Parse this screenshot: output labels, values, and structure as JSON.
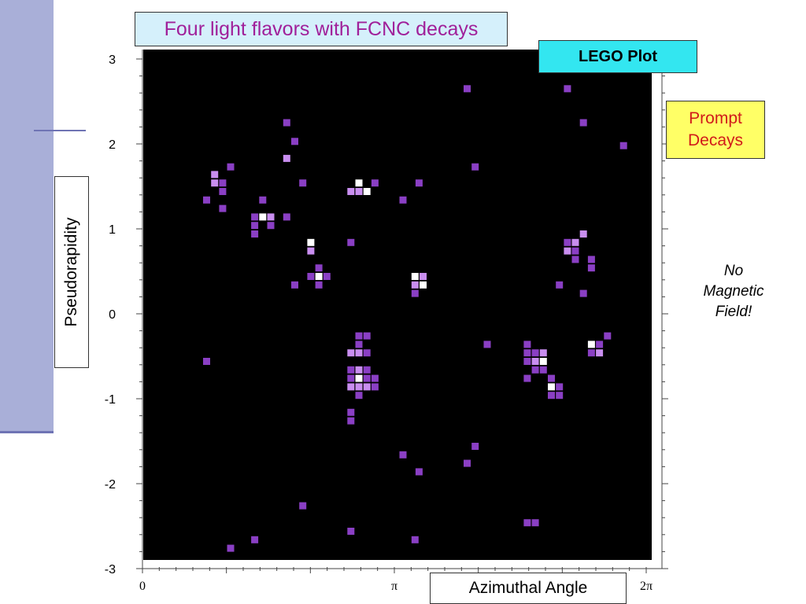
{
  "title": "Four light flavors with FCNC decays",
  "lego_label": "LEGO Plot",
  "prompt_label": [
    "Prompt",
    "Decays"
  ],
  "note": [
    "No",
    "Magnetic",
    "Field!"
  ],
  "colors": {
    "plot_bg": "#000000",
    "cell": "#8a3fc4",
    "cell_light": "#c98ef0",
    "cell_white": "#ffffff",
    "title_text": "#a0209a",
    "title_bg": "#d5f0fb",
    "lego_bg": "#33e6f0",
    "prompt_bg": "#ffff66",
    "prompt_text": "#d11a1a",
    "side_band": "#a9afd8"
  },
  "chart_data": {
    "type": "heatmap",
    "title": "Four light flavors with FCNC decays",
    "xlabel": "Azimuthal Angle",
    "ylabel": "Pseudorapidity",
    "xlim": [
      0,
      6.2832
    ],
    "ylim": [
      -3,
      3
    ],
    "x_ticks": [
      "0",
      "π",
      "2π"
    ],
    "y_ticks": [
      "3",
      "2",
      "1",
      "0",
      "-1",
      "-2",
      "-3"
    ],
    "grid": false,
    "cells": [
      {
        "x": 4.05,
        "y": 2.65,
        "level": 1
      },
      {
        "x": 5.3,
        "y": 2.65,
        "level": 1
      },
      {
        "x": 1.8,
        "y": 2.25,
        "level": 1
      },
      {
        "x": 5.5,
        "y": 2.25,
        "level": 1
      },
      {
        "x": 1.9,
        "y": 2.03,
        "level": 1
      },
      {
        "x": 6.0,
        "y": 1.98,
        "level": 1
      },
      {
        "x": 1.8,
        "y": 1.83,
        "level": 2
      },
      {
        "x": 1.1,
        "y": 1.73,
        "level": 1
      },
      {
        "x": 4.15,
        "y": 1.73,
        "level": 1
      },
      {
        "x": 0.9,
        "y": 1.64,
        "level": 2
      },
      {
        "x": 0.9,
        "y": 1.54,
        "level": 2
      },
      {
        "x": 1.0,
        "y": 1.54,
        "level": 1
      },
      {
        "x": 1.0,
        "y": 1.44,
        "level": 1
      },
      {
        "x": 0.8,
        "y": 1.34,
        "level": 1
      },
      {
        "x": 1.0,
        "y": 1.24,
        "level": 1
      },
      {
        "x": 2.0,
        "y": 1.54,
        "level": 1
      },
      {
        "x": 2.7,
        "y": 1.54,
        "level": 3
      },
      {
        "x": 2.9,
        "y": 1.54,
        "level": 1
      },
      {
        "x": 3.45,
        "y": 1.54,
        "level": 1
      },
      {
        "x": 2.6,
        "y": 1.44,
        "level": 2
      },
      {
        "x": 2.7,
        "y": 1.44,
        "level": 2
      },
      {
        "x": 2.8,
        "y": 1.44,
        "level": 3
      },
      {
        "x": 1.5,
        "y": 1.34,
        "level": 1
      },
      {
        "x": 3.25,
        "y": 1.34,
        "level": 1
      },
      {
        "x": 1.4,
        "y": 1.14,
        "level": 1
      },
      {
        "x": 1.5,
        "y": 1.14,
        "level": 3
      },
      {
        "x": 1.6,
        "y": 1.14,
        "level": 2
      },
      {
        "x": 1.8,
        "y": 1.14,
        "level": 1
      },
      {
        "x": 1.4,
        "y": 1.04,
        "level": 1
      },
      {
        "x": 1.6,
        "y": 1.04,
        "level": 1
      },
      {
        "x": 1.4,
        "y": 0.94,
        "level": 1
      },
      {
        "x": 5.5,
        "y": 0.94,
        "level": 2
      },
      {
        "x": 2.1,
        "y": 0.84,
        "level": 3
      },
      {
        "x": 2.6,
        "y": 0.84,
        "level": 1
      },
      {
        "x": 5.3,
        "y": 0.84,
        "level": 1
      },
      {
        "x": 5.4,
        "y": 0.84,
        "level": 2
      },
      {
        "x": 2.1,
        "y": 0.74,
        "level": 2
      },
      {
        "x": 5.3,
        "y": 0.74,
        "level": 2
      },
      {
        "x": 5.4,
        "y": 0.74,
        "level": 1
      },
      {
        "x": 5.4,
        "y": 0.64,
        "level": 1
      },
      {
        "x": 5.6,
        "y": 0.64,
        "level": 1
      },
      {
        "x": 2.2,
        "y": 0.54,
        "level": 1
      },
      {
        "x": 5.6,
        "y": 0.54,
        "level": 1
      },
      {
        "x": 2.1,
        "y": 0.44,
        "level": 1
      },
      {
        "x": 2.2,
        "y": 0.44,
        "level": 3
      },
      {
        "x": 2.3,
        "y": 0.44,
        "level": 1
      },
      {
        "x": 3.4,
        "y": 0.44,
        "level": 3
      },
      {
        "x": 3.5,
        "y": 0.44,
        "level": 2
      },
      {
        "x": 1.9,
        "y": 0.34,
        "level": 1
      },
      {
        "x": 2.2,
        "y": 0.34,
        "level": 1
      },
      {
        "x": 3.4,
        "y": 0.34,
        "level": 2
      },
      {
        "x": 3.5,
        "y": 0.34,
        "level": 3
      },
      {
        "x": 5.2,
        "y": 0.34,
        "level": 1
      },
      {
        "x": 3.4,
        "y": 0.24,
        "level": 1
      },
      {
        "x": 5.5,
        "y": 0.24,
        "level": 1
      },
      {
        "x": 2.7,
        "y": -0.26,
        "level": 1
      },
      {
        "x": 2.8,
        "y": -0.26,
        "level": 1
      },
      {
        "x": 5.8,
        "y": -0.26,
        "level": 1
      },
      {
        "x": 2.7,
        "y": -0.36,
        "level": 1
      },
      {
        "x": 4.3,
        "y": -0.36,
        "level": 1
      },
      {
        "x": 4.8,
        "y": -0.36,
        "level": 1
      },
      {
        "x": 5.6,
        "y": -0.36,
        "level": 3
      },
      {
        "x": 5.7,
        "y": -0.36,
        "level": 1
      },
      {
        "x": 2.6,
        "y": -0.46,
        "level": 2
      },
      {
        "x": 2.7,
        "y": -0.46,
        "level": 2
      },
      {
        "x": 2.8,
        "y": -0.46,
        "level": 1
      },
      {
        "x": 4.8,
        "y": -0.46,
        "level": 1
      },
      {
        "x": 4.9,
        "y": -0.46,
        "level": 1
      },
      {
        "x": 5.0,
        "y": -0.46,
        "level": 2
      },
      {
        "x": 5.6,
        "y": -0.46,
        "level": 1
      },
      {
        "x": 5.7,
        "y": -0.46,
        "level": 2
      },
      {
        "x": 0.8,
        "y": -0.56,
        "level": 1
      },
      {
        "x": 4.8,
        "y": -0.56,
        "level": 1
      },
      {
        "x": 4.9,
        "y": -0.56,
        "level": 2
      },
      {
        "x": 5.0,
        "y": -0.56,
        "level": 3
      },
      {
        "x": 2.6,
        "y": -0.66,
        "level": 1
      },
      {
        "x": 2.7,
        "y": -0.66,
        "level": 2
      },
      {
        "x": 2.8,
        "y": -0.66,
        "level": 1
      },
      {
        "x": 4.9,
        "y": -0.66,
        "level": 1
      },
      {
        "x": 5.0,
        "y": -0.66,
        "level": 1
      },
      {
        "x": 2.6,
        "y": -0.76,
        "level": 1
      },
      {
        "x": 2.7,
        "y": -0.76,
        "level": 3
      },
      {
        "x": 2.8,
        "y": -0.76,
        "level": 1
      },
      {
        "x": 2.9,
        "y": -0.76,
        "level": 1
      },
      {
        "x": 4.8,
        "y": -0.76,
        "level": 1
      },
      {
        "x": 5.1,
        "y": -0.76,
        "level": 1
      },
      {
        "x": 2.6,
        "y": -0.86,
        "level": 2
      },
      {
        "x": 2.7,
        "y": -0.86,
        "level": 2
      },
      {
        "x": 2.8,
        "y": -0.86,
        "level": 2
      },
      {
        "x": 2.9,
        "y": -0.86,
        "level": 1
      },
      {
        "x": 5.1,
        "y": -0.86,
        "level": 3
      },
      {
        "x": 5.2,
        "y": -0.86,
        "level": 1
      },
      {
        "x": 2.7,
        "y": -0.96,
        "level": 1
      },
      {
        "x": 5.1,
        "y": -0.96,
        "level": 1
      },
      {
        "x": 5.2,
        "y": -0.96,
        "level": 1
      },
      {
        "x": 2.6,
        "y": -1.16,
        "level": 1
      },
      {
        "x": 2.6,
        "y": -1.26,
        "level": 1
      },
      {
        "x": 4.15,
        "y": -1.56,
        "level": 1
      },
      {
        "x": 3.25,
        "y": -1.66,
        "level": 1
      },
      {
        "x": 4.05,
        "y": -1.76,
        "level": 1
      },
      {
        "x": 3.45,
        "y": -1.86,
        "level": 1
      },
      {
        "x": 2.0,
        "y": -2.26,
        "level": 1
      },
      {
        "x": 4.8,
        "y": -2.46,
        "level": 1
      },
      {
        "x": 4.9,
        "y": -2.46,
        "level": 1
      },
      {
        "x": 2.6,
        "y": -2.56,
        "level": 1
      },
      {
        "x": 1.4,
        "y": -2.66,
        "level": 1
      },
      {
        "x": 3.4,
        "y": -2.66,
        "level": 1
      },
      {
        "x": 1.1,
        "y": -2.76,
        "level": 1
      }
    ]
  }
}
